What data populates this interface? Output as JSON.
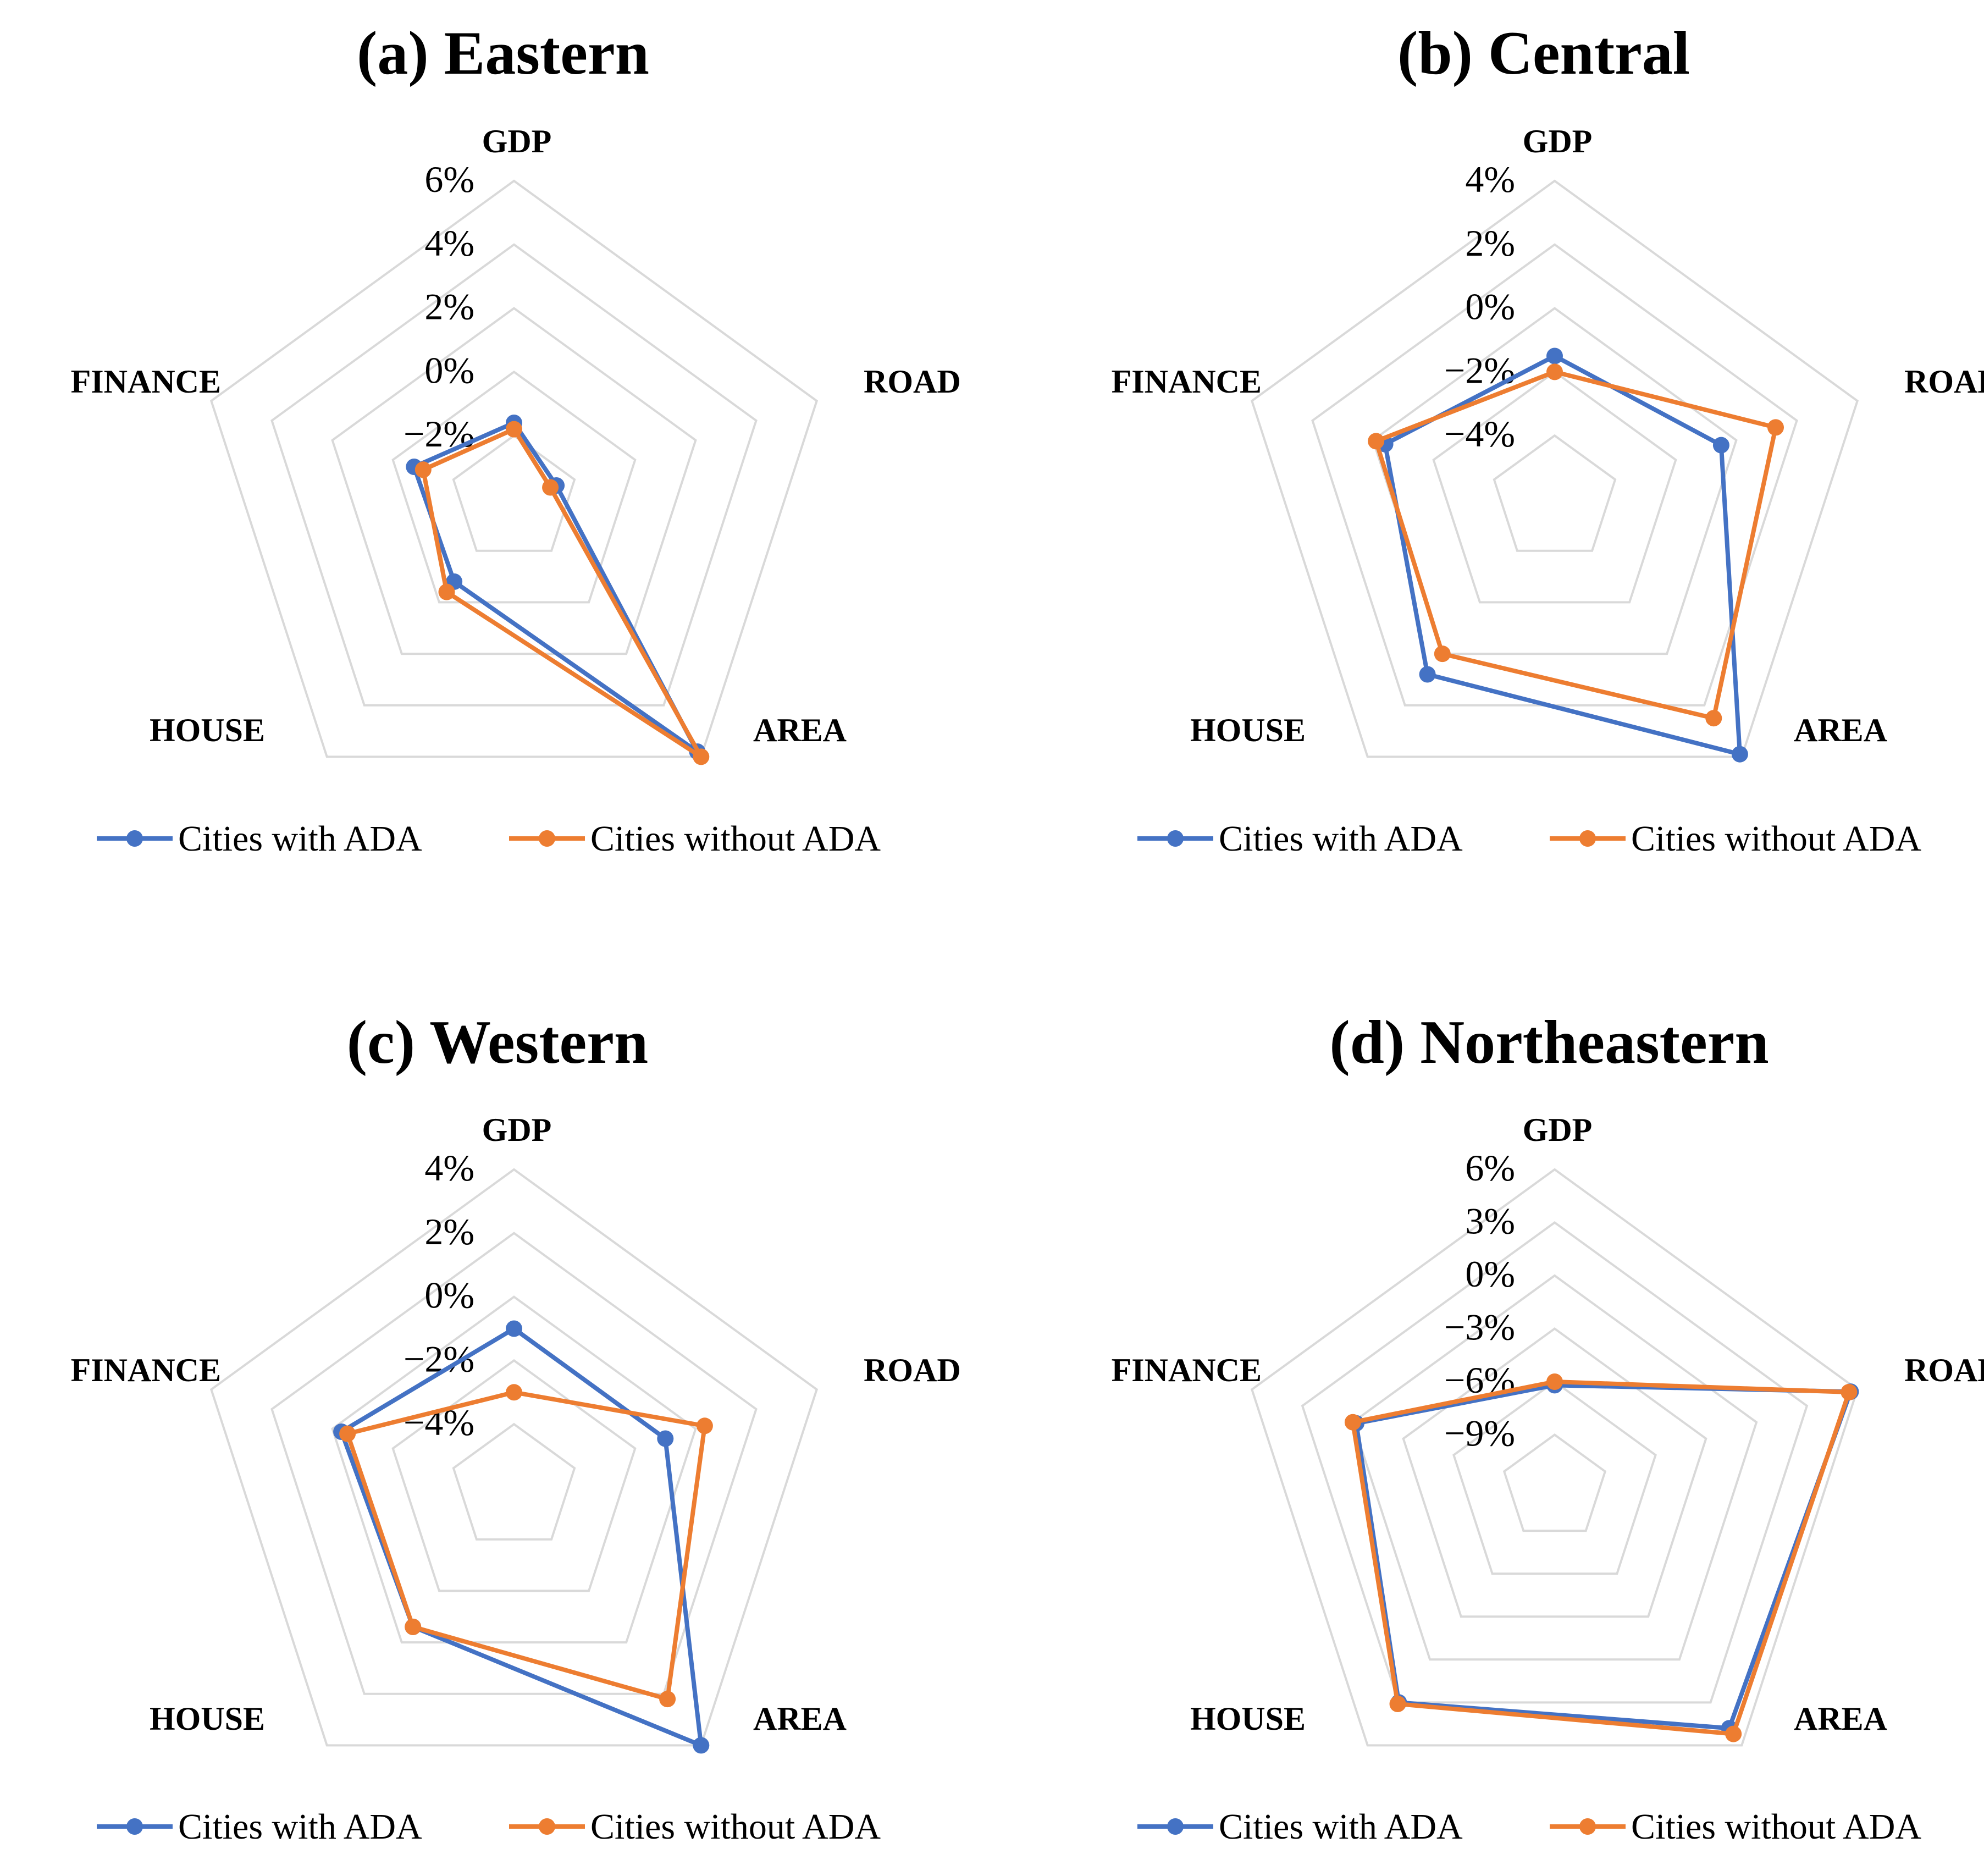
{
  "colors": {
    "with_ada": "#4472C4",
    "without_ada": "#ED7D31",
    "grid": "#D9D9D9"
  },
  "chart_data": [
    {
      "type": "radar",
      "title": "(a) Eastern",
      "categories": [
        "GDP",
        "ROAD",
        "AREA",
        "HOUSE",
        "FINANCE"
      ],
      "ticks": [
        "6%",
        "4%",
        "2%",
        "0%",
        "−2%"
      ],
      "rlim": [
        -4,
        6
      ],
      "series": [
        {
          "name": "Cities with ADA",
          "values": [
            -1.6,
            -2.6,
            5.8,
            -0.8,
            -0.7
          ]
        },
        {
          "name": "Cities without ADA",
          "values": [
            -1.8,
            -2.8,
            6.0,
            -0.4,
            -1.0
          ]
        }
      ],
      "legend": "bottom"
    },
    {
      "type": "radar",
      "title": "(b) Central",
      "categories": [
        "GDP",
        "ROAD",
        "AREA",
        "HOUSE",
        "FINANCE"
      ],
      "ticks": [
        "4%",
        "2%",
        "0%",
        "−2%",
        "−4%"
      ],
      "rlim": [
        -6,
        4
      ],
      "series": [
        {
          "name": "Cities with ADA",
          "values": [
            -1.5,
            -0.5,
            3.9,
            0.8,
            -0.4
          ]
        },
        {
          "name": "Cities without ADA",
          "values": [
            -2.0,
            1.3,
            2.5,
            0.0,
            -0.1
          ]
        }
      ],
      "legend": "bottom"
    },
    {
      "type": "radar",
      "title": "(c) Western",
      "categories": [
        "GDP",
        "ROAD",
        "AREA",
        "HOUSE",
        "FINANCE"
      ],
      "ticks": [
        "4%",
        "2%",
        "0%",
        "−2%",
        "−4%"
      ],
      "rlim": [
        -6,
        4
      ],
      "series": [
        {
          "name": "Cities with ADA",
          "values": [
            -1.0,
            -1.0,
            4.0,
            -0.6,
            -0.3
          ]
        },
        {
          "name": "Cities without ADA",
          "values": [
            -3.0,
            0.3,
            2.2,
            -0.6,
            -0.5
          ]
        }
      ],
      "legend": "bottom"
    },
    {
      "type": "radar",
      "title": "(d) Northeastern",
      "categories": [
        "GDP",
        "ROAD",
        "AREA",
        "HOUSE",
        "FINANCE"
      ],
      "ticks": [
        "6%",
        "3%",
        "0%",
        "−3%",
        "−6%",
        "−9%"
      ],
      "rlim": [
        -12,
        6
      ],
      "series": [
        {
          "name": "Cities with ADA",
          "values": [
            -6.2,
            5.6,
            4.8,
            3.0,
            -0.2
          ]
        },
        {
          "name": "Cities without ADA",
          "values": [
            -6.0,
            5.5,
            5.2,
            3.1,
            0.0
          ]
        }
      ],
      "legend": "bottom"
    }
  ]
}
